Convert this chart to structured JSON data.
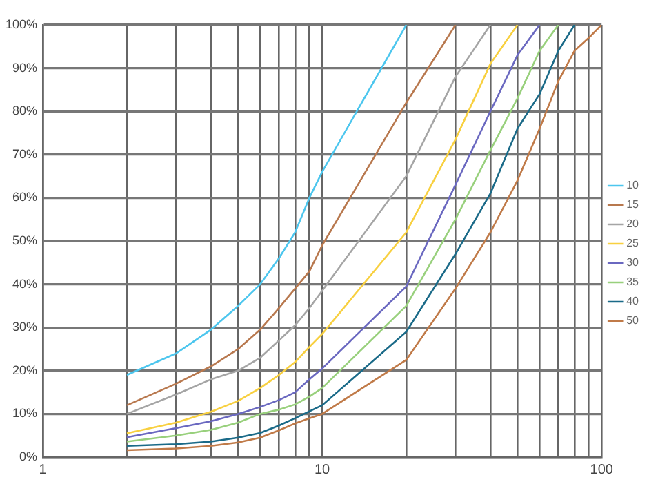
{
  "chart_data": {
    "type": "line",
    "log": "x",
    "grid": true,
    "legend": "right",
    "marker": "none",
    "line_style": "solid",
    "xlim": [
      1,
      100
    ],
    "xticks": [
      1,
      {
        "value": 2,
        "label": null
      },
      {
        "value": 3,
        "label": null
      },
      {
        "value": 4,
        "label": null
      },
      {
        "value": 5,
        "label": null
      },
      {
        "value": 6,
        "label": null
      },
      {
        "value": 7,
        "label": null
      },
      {
        "value": 8,
        "label": null
      },
      {
        "value": 9,
        "label": null
      },
      10,
      {
        "value": 20,
        "label": null
      },
      {
        "value": 30,
        "label": null
      },
      {
        "value": 40,
        "label": null
      },
      {
        "value": 50,
        "label": null
      },
      {
        "value": 60,
        "label": null
      },
      {
        "value": 70,
        "label": null
      },
      {
        "value": 80,
        "label": null
      },
      {
        "value": 90,
        "label": null
      },
      100
    ],
    "ylim": [
      0,
      100
    ],
    "yticks": [
      {
        "value": 0,
        "label": "0%"
      },
      {
        "value": 10,
        "label": "10%"
      },
      {
        "value": 20,
        "label": "20%"
      },
      {
        "value": 30,
        "label": "30%"
      },
      {
        "value": 40,
        "label": "40%"
      },
      {
        "value": 50,
        "label": "50%"
      },
      {
        "value": 60,
        "label": "60%"
      },
      {
        "value": 70,
        "label": "70%"
      },
      {
        "value": 80,
        "label": "80%"
      },
      {
        "value": 90,
        "label": "90%"
      },
      {
        "value": 100,
        "label": "100%"
      }
    ],
    "series": [
      {
        "name": "10",
        "color": "#4cc6ee",
        "x": [
          2,
          3,
          4,
          5,
          6,
          7,
          8,
          9,
          10,
          20
        ],
        "values": [
          19,
          24,
          29.5,
          35,
          40,
          46,
          52,
          60,
          66,
          100
        ]
      },
      {
        "name": "15",
        "color": "#b8784e",
        "x": [
          2,
          3,
          4,
          5,
          6,
          7,
          8,
          9,
          10,
          20,
          30
        ],
        "values": [
          12,
          17,
          21,
          25,
          29.5,
          34.5,
          39,
          43,
          49,
          82,
          100
        ]
      },
      {
        "name": "20",
        "color": "#a5a5a5",
        "x": [
          2,
          3,
          4,
          5,
          6,
          7,
          8,
          9,
          10,
          20,
          30,
          40
        ],
        "values": [
          10,
          14.5,
          18,
          20,
          23,
          27,
          30.5,
          34.5,
          38.5,
          65,
          88,
          100
        ]
      },
      {
        "name": "25",
        "color": "#f8d040",
        "x": [
          2,
          3,
          4,
          5,
          6,
          7,
          8,
          9,
          10,
          20,
          30,
          40,
          50
        ],
        "values": [
          5.5,
          8,
          10.5,
          13,
          16,
          19,
          22,
          25.5,
          28.5,
          52,
          73.5,
          91,
          100
        ]
      },
      {
        "name": "30",
        "color": "#6a68c0",
        "x": [
          2,
          3,
          4,
          5,
          6,
          7,
          8,
          9,
          10,
          20,
          30,
          40,
          50,
          60
        ],
        "values": [
          4.6,
          6.7,
          8.3,
          10,
          11.6,
          13.2,
          15,
          18,
          20.5,
          39.5,
          63,
          80,
          93,
          100
        ]
      },
      {
        "name": "35",
        "color": "#98d07c",
        "x": [
          2,
          3,
          4,
          5,
          6,
          7,
          8,
          9,
          10,
          20,
          30,
          40,
          50,
          60,
          70
        ],
        "values": [
          3.6,
          5,
          6.3,
          8,
          10,
          11,
          12.2,
          14,
          16,
          35,
          55,
          71,
          83,
          94,
          100
        ]
      },
      {
        "name": "40",
        "color": "#1a6a88",
        "x": [
          2,
          3,
          4,
          5,
          6,
          7,
          8,
          9,
          10,
          20,
          30,
          40,
          50,
          60,
          70,
          80
        ],
        "values": [
          2.6,
          3,
          3.6,
          4.5,
          5.6,
          7.3,
          9,
          10.6,
          12,
          29,
          47,
          61,
          76,
          84,
          94,
          100
        ]
      },
      {
        "name": "50",
        "color": "#c07a48",
        "x": [
          2,
          3,
          4,
          5,
          6,
          7,
          8,
          9,
          10,
          20,
          30,
          40,
          50,
          60,
          70,
          80,
          90,
          100
        ],
        "values": [
          1.6,
          2,
          2.6,
          3.4,
          4.5,
          6.2,
          7.8,
          9,
          10,
          22.5,
          39,
          52,
          64,
          76,
          87,
          94,
          97,
          100
        ]
      }
    ]
  }
}
